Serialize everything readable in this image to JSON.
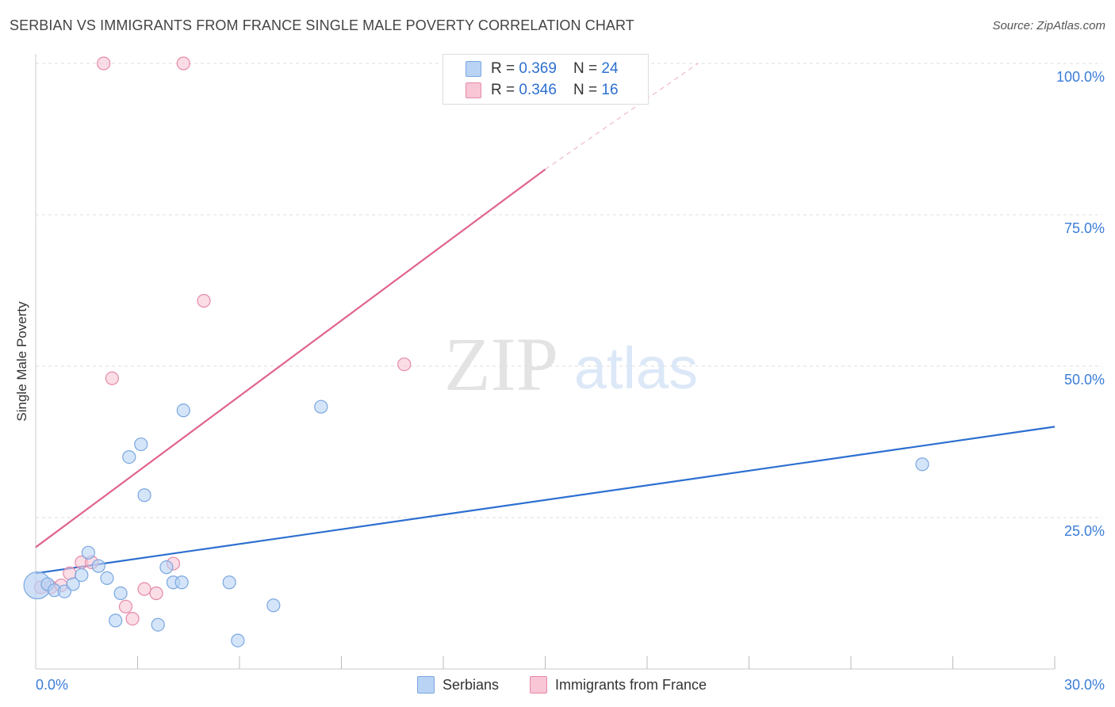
{
  "header": {
    "title": "SERBIAN VS IMMIGRANTS FROM FRANCE SINGLE MALE POVERTY CORRELATION CHART",
    "source": "Source: ZipAtlas.com"
  },
  "watermark": {
    "zip": "ZIP",
    "atlas": "atlas"
  },
  "legend": {
    "serbians": {
      "r_label": "R = ",
      "r_value": "0.369",
      "n_label": "N = ",
      "n_value": "24"
    },
    "france": {
      "r_label": "R = ",
      "r_value": "0.346",
      "n_label": "N = ",
      "n_value": "16"
    }
  },
  "colors": {
    "serbians_fill": "#b9d3f5",
    "serbians_stroke": "#7aa7e0",
    "serbians_line": "#2d6fd0",
    "france_fill": "#f8c6d5",
    "france_stroke": "#e58aa8",
    "france_line": "#e0648c",
    "axis_text": "#3b7dd8",
    "grid": "#dddddd"
  },
  "chart_data": {
    "type": "scatter",
    "title": "SERBIAN VS IMMIGRANTS FROM FRANCE SINGLE MALE POVERTY CORRELATION CHART",
    "xlabel": "",
    "ylabel": "Single Male Poverty",
    "xlim": [
      0,
      30
    ],
    "ylim": [
      0,
      100
    ],
    "x_tick_labels": [
      "0.0%",
      "30.0%"
    ],
    "y_tick_values": [
      25,
      50,
      75,
      100
    ],
    "y_tick_labels": [
      "25.0%",
      "50.0%",
      "75.0%",
      "100.0%"
    ],
    "grid": true,
    "legend_position": "top-center",
    "series": [
      {
        "name": "Serbians",
        "r": 0.369,
        "n": 24,
        "points": [
          {
            "x": 0.05,
            "y": 13.8,
            "big": true
          },
          {
            "x": 0.35,
            "y": 14.0
          },
          {
            "x": 0.55,
            "y": 13.0
          },
          {
            "x": 0.85,
            "y": 12.8
          },
          {
            "x": 1.1,
            "y": 14.0
          },
          {
            "x": 1.35,
            "y": 15.5
          },
          {
            "x": 1.55,
            "y": 19.2
          },
          {
            "x": 1.85,
            "y": 17.0
          },
          {
            "x": 2.1,
            "y": 15.0
          },
          {
            "x": 2.35,
            "y": 8.0
          },
          {
            "x": 2.5,
            "y": 12.5
          },
          {
            "x": 2.75,
            "y": 35.0
          },
          {
            "x": 3.1,
            "y": 37.1
          },
          {
            "x": 3.2,
            "y": 28.7
          },
          {
            "x": 3.6,
            "y": 7.3
          },
          {
            "x": 3.85,
            "y": 16.8
          },
          {
            "x": 4.05,
            "y": 14.3
          },
          {
            "x": 4.3,
            "y": 14.3
          },
          {
            "x": 4.35,
            "y": 42.7
          },
          {
            "x": 5.7,
            "y": 14.3
          },
          {
            "x": 5.95,
            "y": 4.7
          },
          {
            "x": 7.0,
            "y": 10.5
          },
          {
            "x": 8.4,
            "y": 43.3
          },
          {
            "x": 26.1,
            "y": 33.8
          }
        ],
        "trend": {
          "x": [
            0,
            30
          ],
          "y": [
            15.8,
            40.0
          ]
        }
      },
      {
        "name": "Immigrants from France",
        "r": 0.346,
        "n": 16,
        "points": [
          {
            "x": 0.15,
            "y": 13.5
          },
          {
            "x": 0.45,
            "y": 13.5
          },
          {
            "x": 0.75,
            "y": 13.8
          },
          {
            "x": 1.0,
            "y": 15.8
          },
          {
            "x": 1.35,
            "y": 17.6
          },
          {
            "x": 1.65,
            "y": 17.6
          },
          {
            "x": 2.0,
            "y": 100.0
          },
          {
            "x": 2.25,
            "y": 48.0
          },
          {
            "x": 2.65,
            "y": 10.3
          },
          {
            "x": 2.85,
            "y": 8.3
          },
          {
            "x": 3.2,
            "y": 13.2
          },
          {
            "x": 3.55,
            "y": 12.5
          },
          {
            "x": 4.05,
            "y": 17.4
          },
          {
            "x": 4.35,
            "y": 100.0
          },
          {
            "x": 4.95,
            "y": 60.8
          },
          {
            "x": 10.85,
            "y": 50.3
          }
        ],
        "trend": {
          "x": [
            0,
            15.0
          ],
          "y": [
            20.1,
            82.5
          ]
        },
        "trend_dashed": {
          "x": [
            15.0,
            19.5
          ],
          "y": [
            82.5,
            100.0
          ]
        }
      }
    ]
  }
}
